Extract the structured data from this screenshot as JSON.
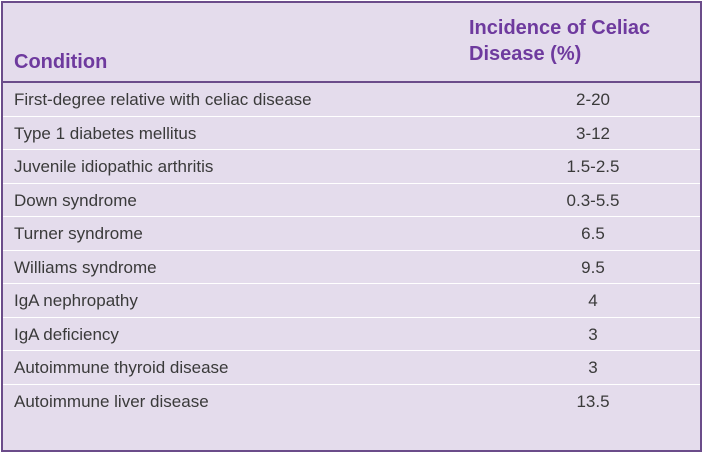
{
  "table": {
    "headers": {
      "condition": "Condition",
      "incidence": "Incidence of Celiac Disease (%)"
    },
    "rows": [
      {
        "condition": "First-degree relative with celiac disease",
        "incidence": "2-20"
      },
      {
        "condition": "Type 1 diabetes mellitus",
        "incidence": "3-12"
      },
      {
        "condition": "Juvenile idiopathic arthritis",
        "incidence": "1.5-2.5"
      },
      {
        "condition": "Down syndrome",
        "incidence": "0.3-5.5"
      },
      {
        "condition": "Turner syndrome",
        "incidence": "6.5"
      },
      {
        "condition": "Williams syndrome",
        "incidence": "9.5"
      },
      {
        "condition": "IgA nephropathy",
        "incidence": "4"
      },
      {
        "condition": "IgA deficiency",
        "incidence": "3"
      },
      {
        "condition": "Autoimmune thyroid disease",
        "incidence": "3"
      },
      {
        "condition": "Autoimmune liver disease",
        "incidence": "13.5"
      }
    ]
  },
  "colors": {
    "background": "#e4dcec",
    "border": "#6b4c8a",
    "header_text": "#6e3a9e",
    "row_separator": "#ffffff",
    "body_text": "#3a3a3a"
  }
}
